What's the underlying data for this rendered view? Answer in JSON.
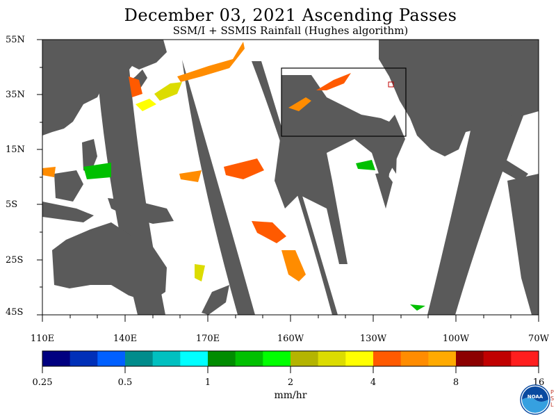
{
  "title": "December 03, 2021  Ascending Passes",
  "subtitle": "SSM/I + SSMIS Rainfall (Hughes algorithm)",
  "lat_labels": [
    "55N",
    "35N",
    "15N",
    "5S",
    "25S",
    "45S"
  ],
  "lon_labels": [
    "110E",
    "140E",
    "170E",
    "160W",
    "130W",
    "100W",
    "70W"
  ],
  "colorbar": {
    "colors": [
      "#000080",
      "#0030b8",
      "#0060ff",
      "#008c8c",
      "#00c0c0",
      "#00ffff",
      "#008c00",
      "#00c000",
      "#00ff00",
      "#b4b400",
      "#dcdc00",
      "#ffff00",
      "#ff5a00",
      "#ff8c00",
      "#ffaa00",
      "#8c0000",
      "#c00000",
      "#ff1e1e"
    ],
    "tick_labels": [
      "0.25",
      "0.5",
      "1",
      "2",
      "4",
      "8",
      "16"
    ]
  },
  "units": "mm/hr",
  "logo_text": "NOAA",
  "logo_side_letters": [
    "P",
    "S",
    "L"
  ],
  "colors": {
    "land": "#5a5a5a",
    "no_data_swath": "#5a5a5a",
    "ocean_observed": "#ffffff"
  }
}
